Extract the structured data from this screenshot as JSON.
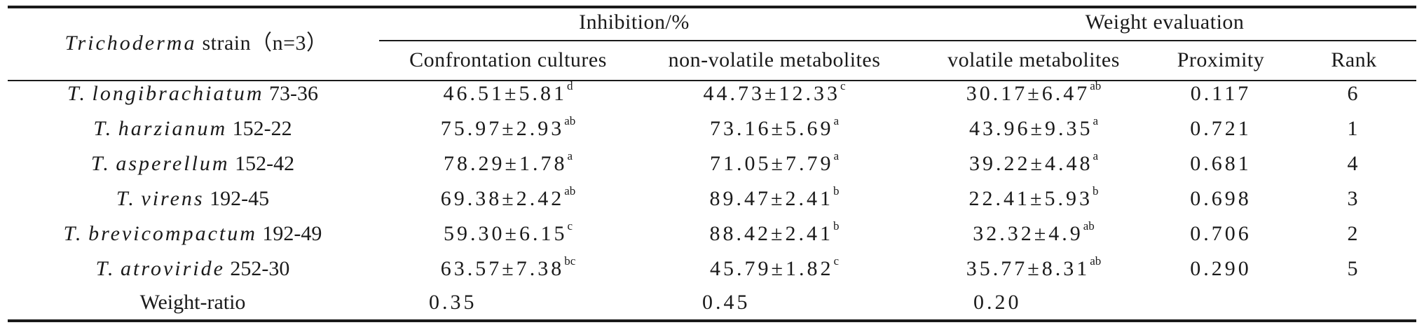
{
  "table": {
    "header": {
      "strain_italic": "Trichoderma",
      "strain_rest": " strain（n=3）",
      "inhibition": "Inhibition/%",
      "weight_evaluation": "Weight evaluation",
      "columns": [
        "Confrontation cultures",
        "non-volatile metabolites",
        "volatile metabolites",
        "Proximity",
        "Rank"
      ]
    },
    "rows": [
      {
        "genus": "T.",
        "species": "longibrachiatum",
        "code": "73-36",
        "cc": "46.51±5.81",
        "cc_sup": "d",
        "nv": "44.73±12.33",
        "nv_sup": "c",
        "v": "30.17±6.47",
        "v_sup": "ab",
        "proximity": "0.117",
        "rank": "6"
      },
      {
        "genus": "T.",
        "species": "harzianum",
        "code": "152-22",
        "cc": "75.97±2.93",
        "cc_sup": "ab",
        "nv": "73.16±5.69",
        "nv_sup": "a",
        "v": "43.96±9.35",
        "v_sup": "a",
        "proximity": "0.721",
        "rank": "1"
      },
      {
        "genus": "T.",
        "species": "asperellum",
        "code": "152-42",
        "cc": "78.29±1.78",
        "cc_sup": "a",
        "nv": "71.05±7.79",
        "nv_sup": "a",
        "v": "39.22±4.48",
        "v_sup": "a",
        "proximity": "0.681",
        "rank": "4"
      },
      {
        "genus": "T.",
        "species": "virens",
        "code": "192-45",
        "cc": "69.38±2.42",
        "cc_sup": "ab",
        "nv": "89.47±2.41",
        "nv_sup": "b",
        "v": "22.41±5.93",
        "v_sup": "b",
        "proximity": "0.698",
        "rank": "3"
      },
      {
        "genus": "T.",
        "species": "brevicompactum",
        "code": "192-49",
        "cc": "59.30±6.15",
        "cc_sup": "c",
        "nv": "88.42±2.41",
        "nv_sup": "b",
        "v": "32.32±4.9",
        "v_sup": "ab",
        "proximity": "0.706",
        "rank": "2"
      },
      {
        "genus": "T.",
        "species": "atroviride",
        "code": "252-30",
        "cc": "63.57±7.38",
        "cc_sup": "bc",
        "nv": "45.79±1.82",
        "nv_sup": "c",
        "v": "35.77±8.31",
        "v_sup": "ab",
        "proximity": "0.290",
        "rank": "5"
      }
    ],
    "weight_ratio": {
      "label": "Weight-ratio",
      "cc": "0.35",
      "nv": "0.45",
      "v": "0.20"
    }
  }
}
